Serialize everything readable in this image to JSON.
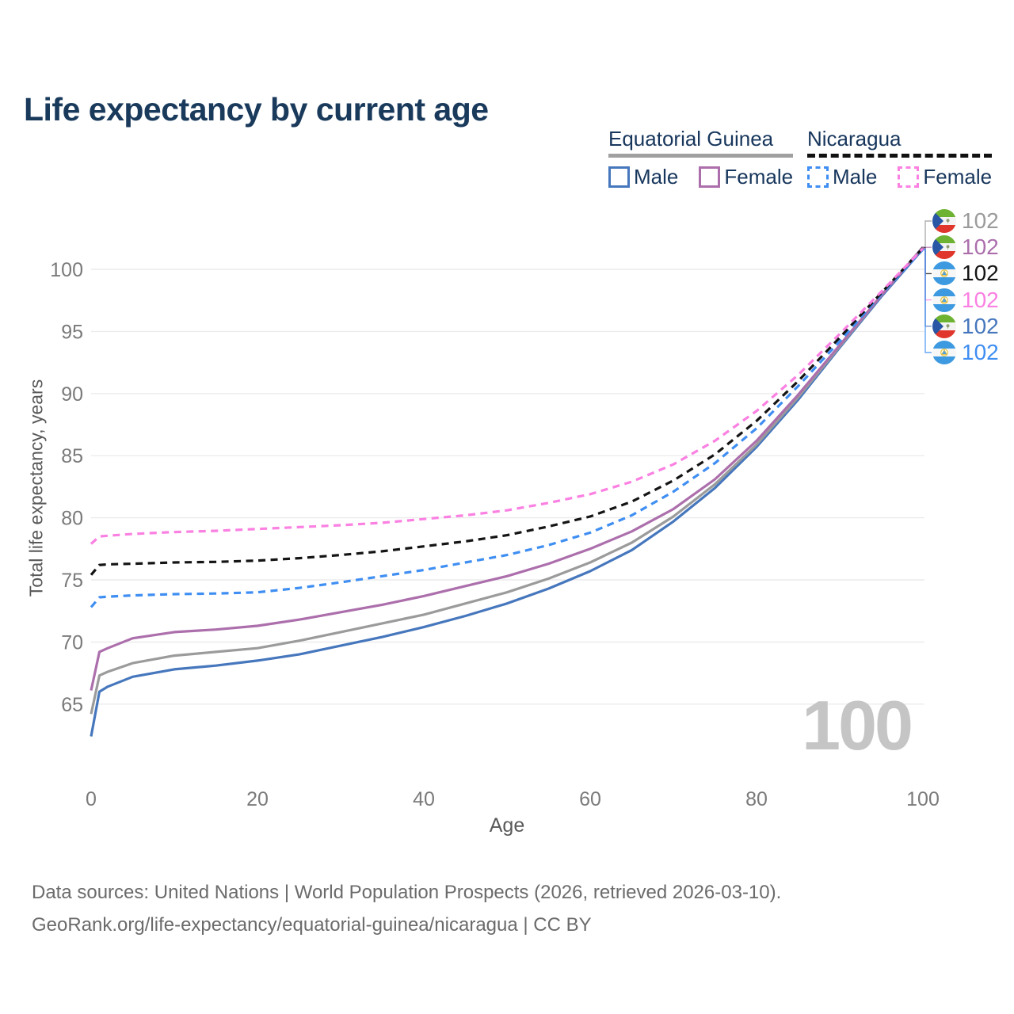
{
  "header": {
    "title": "Life expectancy by current age"
  },
  "legend": {
    "groups": [
      {
        "country": "Equatorial Guinea",
        "line_style": "solid",
        "underline_color": "#a0a0a0",
        "items": [
          {
            "label": "Male",
            "color": "#4677bd"
          },
          {
            "label": "Female",
            "color": "#ac6fac"
          }
        ]
      },
      {
        "country": "Nicaragua",
        "line_style": "dashed",
        "underline_color": "#111111",
        "items": [
          {
            "label": "Male",
            "color": "#3f8ef2"
          },
          {
            "label": "Female",
            "color": "#fa80e2"
          }
        ]
      }
    ]
  },
  "chart_data": {
    "type": "line",
    "title": "Life expectancy by current age",
    "xlabel": "Age",
    "ylabel": "Total life expectancy, years",
    "xlim": [
      0,
      100
    ],
    "ylim": [
      62,
      102.5
    ],
    "xticks": [
      0,
      20,
      40,
      60,
      80,
      100
    ],
    "yticks": [
      65,
      70,
      75,
      80,
      85,
      90,
      95,
      100
    ],
    "grid": "horizontal-only",
    "legend_position": "top-right",
    "watermark": "100",
    "x": [
      0,
      1,
      2,
      5,
      10,
      15,
      20,
      25,
      30,
      35,
      40,
      45,
      50,
      55,
      60,
      65,
      70,
      75,
      80,
      85,
      90,
      95,
      100
    ],
    "series": [
      {
        "name": "Equatorial Guinea — Total",
        "country": "Equatorial Guinea",
        "flag": "gq",
        "style": "solid",
        "color": "#9b9b9b",
        "end_label": "102",
        "values": [
          64.2,
          67.3,
          67.6,
          68.3,
          68.9,
          69.2,
          69.5,
          70.1,
          70.8,
          71.5,
          72.2,
          73.1,
          74.0,
          75.1,
          76.4,
          78.0,
          80.1,
          82.7,
          85.9,
          89.7,
          93.8,
          97.9,
          101.8
        ]
      },
      {
        "name": "Equatorial Guinea — Female",
        "country": "Equatorial Guinea",
        "flag": "gq",
        "style": "solid",
        "color": "#ac6fac",
        "end_label": "102",
        "values": [
          66.1,
          69.2,
          69.5,
          70.3,
          70.8,
          71.0,
          71.3,
          71.8,
          72.4,
          73.0,
          73.7,
          74.5,
          75.3,
          76.3,
          77.5,
          78.9,
          80.7,
          83.1,
          86.2,
          89.9,
          93.9,
          97.9,
          101.76
        ]
      },
      {
        "name": "Nicaragua — Total",
        "country": "Nicaragua",
        "flag": "ni",
        "style": "dashed",
        "color": "#141414",
        "end_label": "102",
        "values": [
          75.4,
          76.2,
          76.25,
          76.3,
          76.4,
          76.45,
          76.55,
          76.75,
          77.0,
          77.3,
          77.7,
          78.1,
          78.6,
          79.3,
          80.1,
          81.3,
          83.0,
          85.1,
          87.8,
          91.0,
          94.5,
          98.1,
          101.72
        ]
      },
      {
        "name": "Nicaragua — Female",
        "country": "Nicaragua",
        "flag": "ni",
        "style": "dashed",
        "color": "#fa80e2",
        "end_label": "102",
        "values": [
          77.9,
          78.5,
          78.55,
          78.7,
          78.85,
          78.95,
          79.1,
          79.25,
          79.4,
          79.6,
          79.9,
          80.2,
          80.6,
          81.2,
          81.9,
          82.9,
          84.3,
          86.2,
          88.6,
          91.5,
          94.8,
          98.2,
          101.68
        ]
      },
      {
        "name": "Equatorial Guinea — Male",
        "country": "Equatorial Guinea",
        "flag": "gq",
        "style": "solid",
        "color": "#4677bd",
        "end_label": "102",
        "values": [
          62.4,
          66.0,
          66.4,
          67.2,
          67.8,
          68.1,
          68.5,
          69.0,
          69.7,
          70.4,
          71.2,
          72.1,
          73.1,
          74.3,
          75.7,
          77.4,
          79.7,
          82.4,
          85.7,
          89.5,
          93.7,
          97.8,
          101.64
        ]
      },
      {
        "name": "Nicaragua — Male",
        "country": "Nicaragua",
        "flag": "ni",
        "style": "dashed",
        "color": "#3f8ef2",
        "end_label": "102",
        "values": [
          72.8,
          73.6,
          73.65,
          73.75,
          73.85,
          73.9,
          74.0,
          74.35,
          74.8,
          75.3,
          75.8,
          76.4,
          77.0,
          77.8,
          78.8,
          80.2,
          82.1,
          84.4,
          87.2,
          90.6,
          94.2,
          98.0,
          101.6
        ]
      }
    ]
  },
  "footer": {
    "line1": "Data sources: United Nations | World Population Prospects (2026, retrieved 2026-03-10).",
    "line2": "GeoRank.org/life-expectancy/equatorial-guinea/nicaragua | CC BY"
  }
}
